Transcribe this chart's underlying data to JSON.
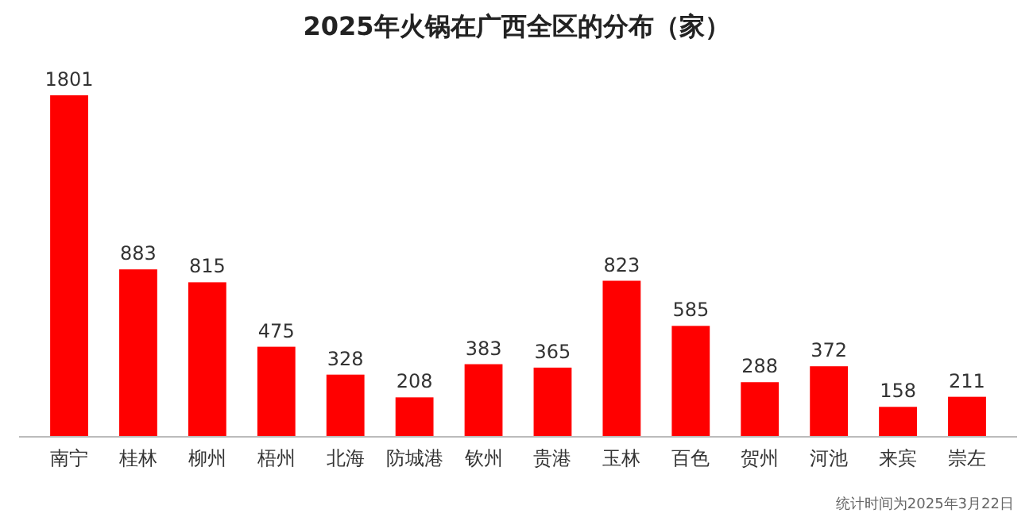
{
  "chart_data": {
    "type": "bar",
    "title": "2025年火锅在广西全区的分布（家）",
    "categories": [
      "南宁",
      "桂林",
      "柳州",
      "梧州",
      "北海",
      "防城港",
      "钦州",
      "贵港",
      "玉林",
      "百色",
      "贺州",
      "河池",
      "来宾",
      "崇左"
    ],
    "values": [
      1801,
      883,
      815,
      475,
      328,
      208,
      383,
      365,
      823,
      585,
      288,
      372,
      158,
      211
    ],
    "color": "#ff0000",
    "data_labels": true,
    "annotations": [
      "统计时间为2025年3月22日"
    ]
  }
}
